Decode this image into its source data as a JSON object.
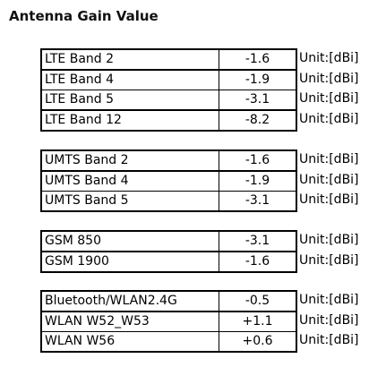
{
  "header": {
    "title": "Antenna Gain Value"
  },
  "groups": [
    {
      "rows": [
        {
          "label": "LTE Band 2",
          "value": "-1.6",
          "unit": "Unit:[dBi]"
        },
        {
          "label": "LTE Band 4",
          "value": "-1.9",
          "unit": "Unit:[dBi]"
        },
        {
          "label": "LTE Band 5",
          "value": "-3.1",
          "unit": "Unit:[dBi]"
        },
        {
          "label": "LTE Band 12",
          "value": "-8.2",
          "unit": "Unit:[dBi]"
        }
      ]
    },
    {
      "rows": [
        {
          "label": "UMTS Band 2",
          "value": "-1.6",
          "unit": "Unit:[dBi]"
        },
        {
          "label": "UMTS Band 4",
          "value": "-1.9",
          "unit": "Unit:[dBi]"
        },
        {
          "label": "UMTS Band 5",
          "value": "-3.1",
          "unit": "Unit:[dBi]"
        }
      ]
    },
    {
      "rows": [
        {
          "label": "GSM 850",
          "value": "-3.1",
          "unit": "Unit:[dBi]"
        },
        {
          "label": "GSM 1900",
          "value": "-1.6",
          "unit": "Unit:[dBi]"
        }
      ]
    },
    {
      "rows": [
        {
          "label": "Bluetooth/WLAN2.4G",
          "value": "-0.5",
          "unit": "Unit:[dBi]"
        },
        {
          "label": "WLAN W52_W53",
          "value": "+1.1",
          "unit": "Unit:[dBi]"
        },
        {
          "label": "WLAN W56",
          "value": "+0.6",
          "unit": "Unit:[dBi]"
        }
      ]
    }
  ]
}
